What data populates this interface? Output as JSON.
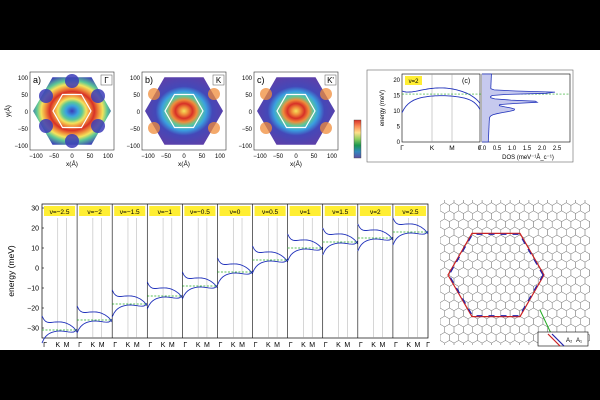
{
  "maps": [
    {
      "tag": "a)",
      "point": "Γ",
      "pattern": "gamma"
    },
    {
      "tag": "b)",
      "point": "K",
      "pattern": "k"
    },
    {
      "tag": "c)",
      "point": "K'",
      "pattern": "k"
    }
  ],
  "map_axes": {
    "xlabel": "x(Å)",
    "ylabel": "y(Å)",
    "xticks": [
      "−100",
      "−50",
      "0",
      "50",
      "100"
    ],
    "yticks": [
      "100",
      "50",
      "0",
      "−50",
      "−100"
    ]
  },
  "colorbar_colors": [
    "#d73027",
    "#fc8d59",
    "#fee08b",
    "#91cf60",
    "#1a9850",
    "#3288bd",
    "#5e4fa2"
  ],
  "chart_data": [
    {
      "type": "line",
      "panel": "(c)",
      "badge": "ν=2",
      "ylabel": "energy (meV)",
      "xlabel": "",
      "y_ticks": [
        "20",
        "15",
        "10",
        "5",
        "0"
      ],
      "x_ticks": [
        "Γ",
        "K",
        "M",
        "Γ"
      ],
      "dos_xlabel": "DOS (meV⁻¹Å_c⁻¹)",
      "dos_ticks": [
        "0.0",
        "0.5",
        "1.0",
        "1.5",
        "2.0",
        "2.5"
      ],
      "fermi_level": 15.5,
      "ylim": [
        0,
        22
      ]
    },
    {
      "type": "line",
      "ylabel": "energy (meV)",
      "y_ticks": [
        "30",
        "20",
        "10",
        "0",
        "−10",
        "−20",
        "−30"
      ],
      "ylim": [
        -35,
        32
      ],
      "x_ticks": [
        "Γ",
        "K",
        "M"
      ],
      "panels": [
        {
          "label": "ν=−2.5",
          "fermi": -31
        },
        {
          "label": "ν=−2",
          "fermi": -26
        },
        {
          "label": "ν=−1.5",
          "fermi": -18
        },
        {
          "label": "ν=−1",
          "fermi": -14
        },
        {
          "label": "ν=−0.5",
          "fermi": -9
        },
        {
          "label": "ν=0",
          "fermi": -2
        },
        {
          "label": "ν=0.5",
          "fermi": 4
        },
        {
          "label": "ν=1",
          "fermi": 10
        },
        {
          "label": "ν=1.5",
          "fermi": 13
        },
        {
          "label": "ν=2",
          "fermi": 15
        },
        {
          "label": "ν=2.5",
          "fermi": 18
        }
      ]
    }
  ],
  "lattice": {
    "label_a2": "A₂",
    "label_a1": "A₁",
    "arrow_color": "#22aa22",
    "bz_color_a": "#2222aa",
    "bz_color_b": "#cc2222"
  },
  "colors": {
    "band": "#2233bb",
    "fermi": "#22aa22",
    "badge": "#ffee33"
  }
}
